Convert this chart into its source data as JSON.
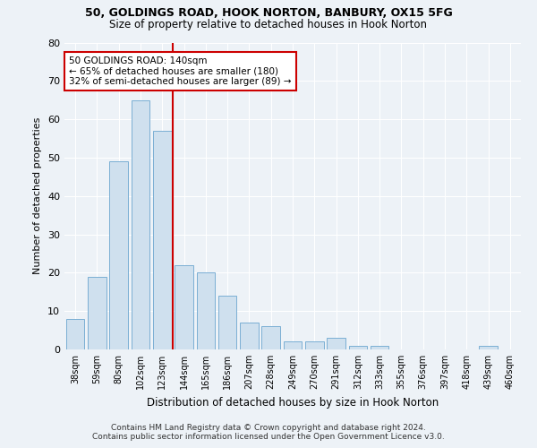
{
  "title_line1": "50, GOLDINGS ROAD, HOOK NORTON, BANBURY, OX15 5FG",
  "title_line2": "Size of property relative to detached houses in Hook Norton",
  "xlabel": "Distribution of detached houses by size in Hook Norton",
  "ylabel": "Number of detached properties",
  "bar_labels": [
    "38sqm",
    "59sqm",
    "80sqm",
    "102sqm",
    "123sqm",
    "144sqm",
    "165sqm",
    "186sqm",
    "207sqm",
    "228sqm",
    "249sqm",
    "270sqm",
    "291sqm",
    "312sqm",
    "333sqm",
    "355sqm",
    "376sqm",
    "397sqm",
    "418sqm",
    "439sqm",
    "460sqm"
  ],
  "bar_values": [
    8,
    19,
    49,
    65,
    57,
    22,
    20,
    14,
    7,
    6,
    2,
    2,
    3,
    1,
    1,
    0,
    0,
    0,
    0,
    1,
    0
  ],
  "bar_color": "#cfe0ee",
  "bar_edge_color": "#7aafd4",
  "ylim": [
    0,
    80
  ],
  "yticks": [
    0,
    10,
    20,
    30,
    40,
    50,
    60,
    70,
    80
  ],
  "annotation_line1": "50 GOLDINGS ROAD: 140sqm",
  "annotation_line2": "← 65% of detached houses are smaller (180)",
  "annotation_line3": "32% of semi-detached houses are larger (89) →",
  "footer_line1": "Contains HM Land Registry data © Crown copyright and database right 2024.",
  "footer_line2": "Contains public sector information licensed under the Open Government Licence v3.0.",
  "background_color": "#edf2f7",
  "grid_color": "#ffffff",
  "annotation_box_color": "#ffffff",
  "annotation_box_edge": "#cc0000",
  "vline_color": "#cc0000",
  "vline_pos": 4.5
}
